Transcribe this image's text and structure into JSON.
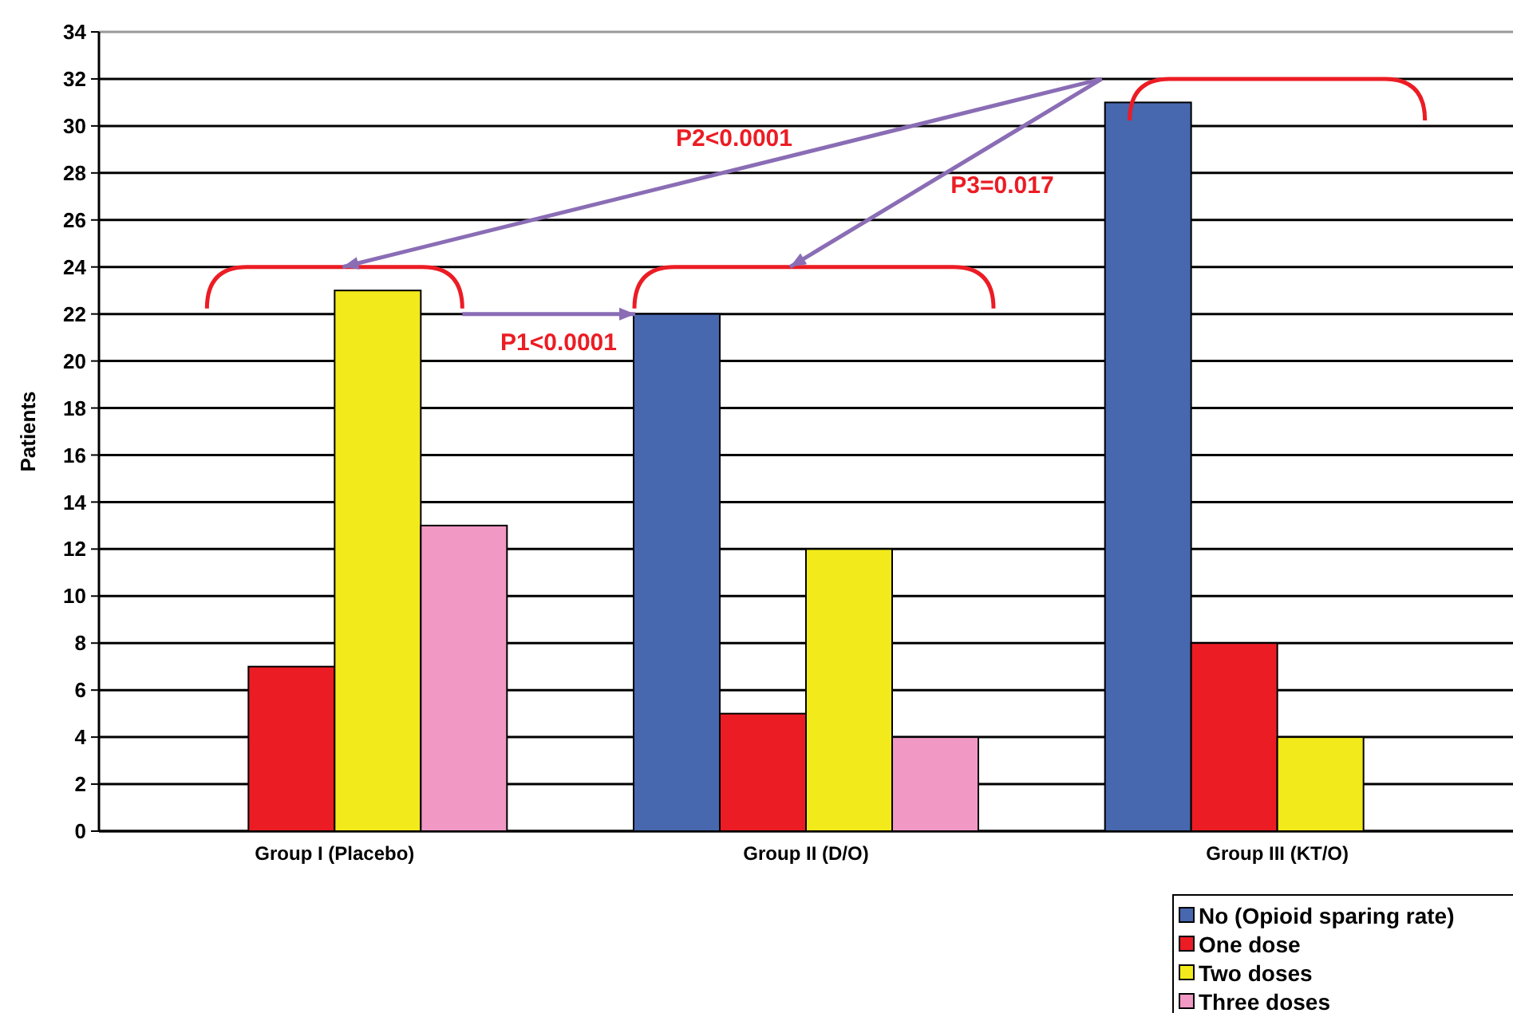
{
  "chart_data": {
    "type": "bar",
    "ylabel": "Patients",
    "categories": [
      "Group I (Placebo)",
      "Group II (D/O)",
      "Group III (KT/O)"
    ],
    "series": [
      {
        "name": "No (Opioid sparing rate)",
        "color": "#4767ae",
        "values": [
          0,
          22,
          31
        ]
      },
      {
        "name": "One dose",
        "color": "#ec1c24",
        "values": [
          7,
          5,
          8
        ]
      },
      {
        "name": "Two doses",
        "color": "#f2ea1a",
        "values": [
          23,
          12,
          4
        ]
      },
      {
        "name": "Three doses",
        "color": "#f198c4",
        "values": [
          13,
          4,
          0
        ]
      }
    ],
    "ylim": [
      0,
      34
    ],
    "yticks": [
      0,
      2,
      4,
      6,
      8,
      10,
      12,
      14,
      16,
      18,
      20,
      22,
      24,
      26,
      28,
      30,
      32,
      34
    ],
    "grid": "y",
    "legend": "bottom right",
    "annotations": [
      "P1<0.0001",
      "P2<0.0001",
      "P3=0.017"
    ]
  }
}
